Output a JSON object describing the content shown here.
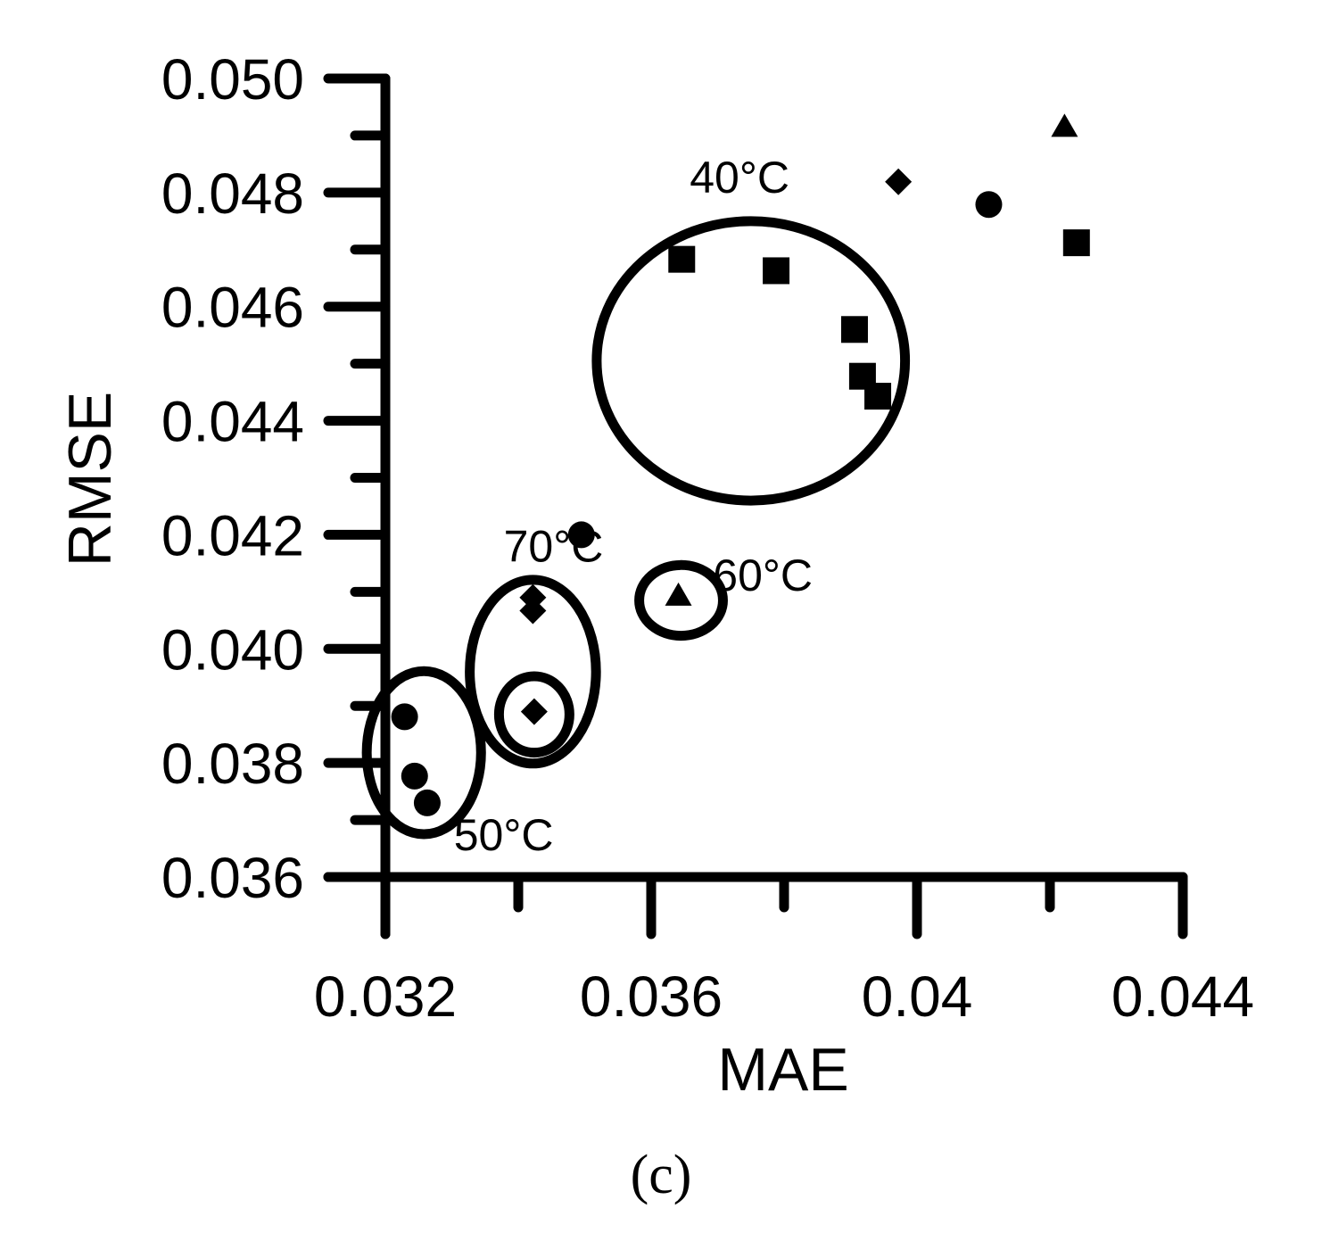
{
  "chart_data": {
    "type": "scatter",
    "title": "",
    "xlabel": "MAE",
    "ylabel": "RMSE",
    "xlim": [
      0.032,
      0.044
    ],
    "ylim": [
      0.036,
      0.05
    ],
    "x_ticks": [
      0.032,
      0.034,
      0.036,
      0.038,
      0.04,
      0.042,
      0.044
    ],
    "x_tick_labels": [
      "0.032",
      "",
      "0.036",
      "",
      "0.04",
      "",
      "0.044"
    ],
    "y_ticks": [
      0.036,
      0.037,
      0.038,
      0.039,
      0.04,
      0.041,
      0.042,
      0.043,
      0.044,
      0.045,
      0.046,
      0.047,
      0.048,
      0.049,
      0.05
    ],
    "y_tick_labels": [
      "0.036",
      "",
      "0.038",
      "",
      "0.040",
      "",
      "0.042",
      "",
      "0.044",
      "",
      "0.046",
      "",
      "0.048",
      "",
      "0.050"
    ],
    "grid": false,
    "legend": false,
    "caption": "(c)",
    "marker_color": "#000000",
    "series": [
      {
        "marker": "square",
        "points": [
          {
            "x": 0.03646,
            "y": 0.04683
          },
          {
            "x": 0.03788,
            "y": 0.04663
          },
          {
            "x": 0.03906,
            "y": 0.0456
          },
          {
            "x": 0.03918,
            "y": 0.04478
          },
          {
            "x": 0.03941,
            "y": 0.04443
          },
          {
            "x": 0.0424,
            "y": 0.04712
          }
        ]
      },
      {
        "marker": "circle",
        "points": [
          {
            "x": 0.04108,
            "y": 0.04779
          },
          {
            "x": 0.03495,
            "y": 0.042
          },
          {
            "x": 0.03229,
            "y": 0.03881
          },
          {
            "x": 0.03244,
            "y": 0.03777
          },
          {
            "x": 0.03263,
            "y": 0.0373
          }
        ]
      },
      {
        "marker": "diamond",
        "points": [
          {
            "x": 0.03972,
            "y": 0.04819
          },
          {
            "x": 0.03422,
            "y": 0.0409
          },
          {
            "x": 0.03422,
            "y": 0.04067
          },
          {
            "x": 0.03424,
            "y": 0.0389
          }
        ]
      },
      {
        "marker": "triangle",
        "points": [
          {
            "x": 0.04222,
            "y": 0.04915
          },
          {
            "x": 0.03641,
            "y": 0.04093
          }
        ]
      }
    ],
    "annotations": [
      {
        "text": "40°C",
        "x": 0.03733,
        "y": 0.048,
        "ellipse": {
          "cx": 0.0375,
          "cy": 0.04505,
          "rx": 0.00232,
          "ry": 0.00245
        }
      },
      {
        "text": "70°C",
        "x": 0.03453,
        "y": 0.04153,
        "ellipse": {
          "cx": 0.03422,
          "cy": 0.0396,
          "rx": 0.00095,
          "ry": 0.00161
        }
      },
      {
        "text": "",
        "x": 0,
        "y": 0,
        "ellipse": {
          "cx": 0.03424,
          "cy": 0.03885,
          "rx": 0.00053,
          "ry": 0.00067
        }
      },
      {
        "text": "60°C",
        "x": 0.03768,
        "y": 0.04102,
        "ellipse": {
          "cx": 0.03645,
          "cy": 0.04085,
          "rx": 0.00063,
          "ry": 0.00062
        }
      },
      {
        "text": "50°C",
        "x": 0.03378,
        "y": 0.03647,
        "ellipse": {
          "cx": 0.03258,
          "cy": 0.03818,
          "rx": 0.00086,
          "ry": 0.00143
        }
      }
    ]
  }
}
